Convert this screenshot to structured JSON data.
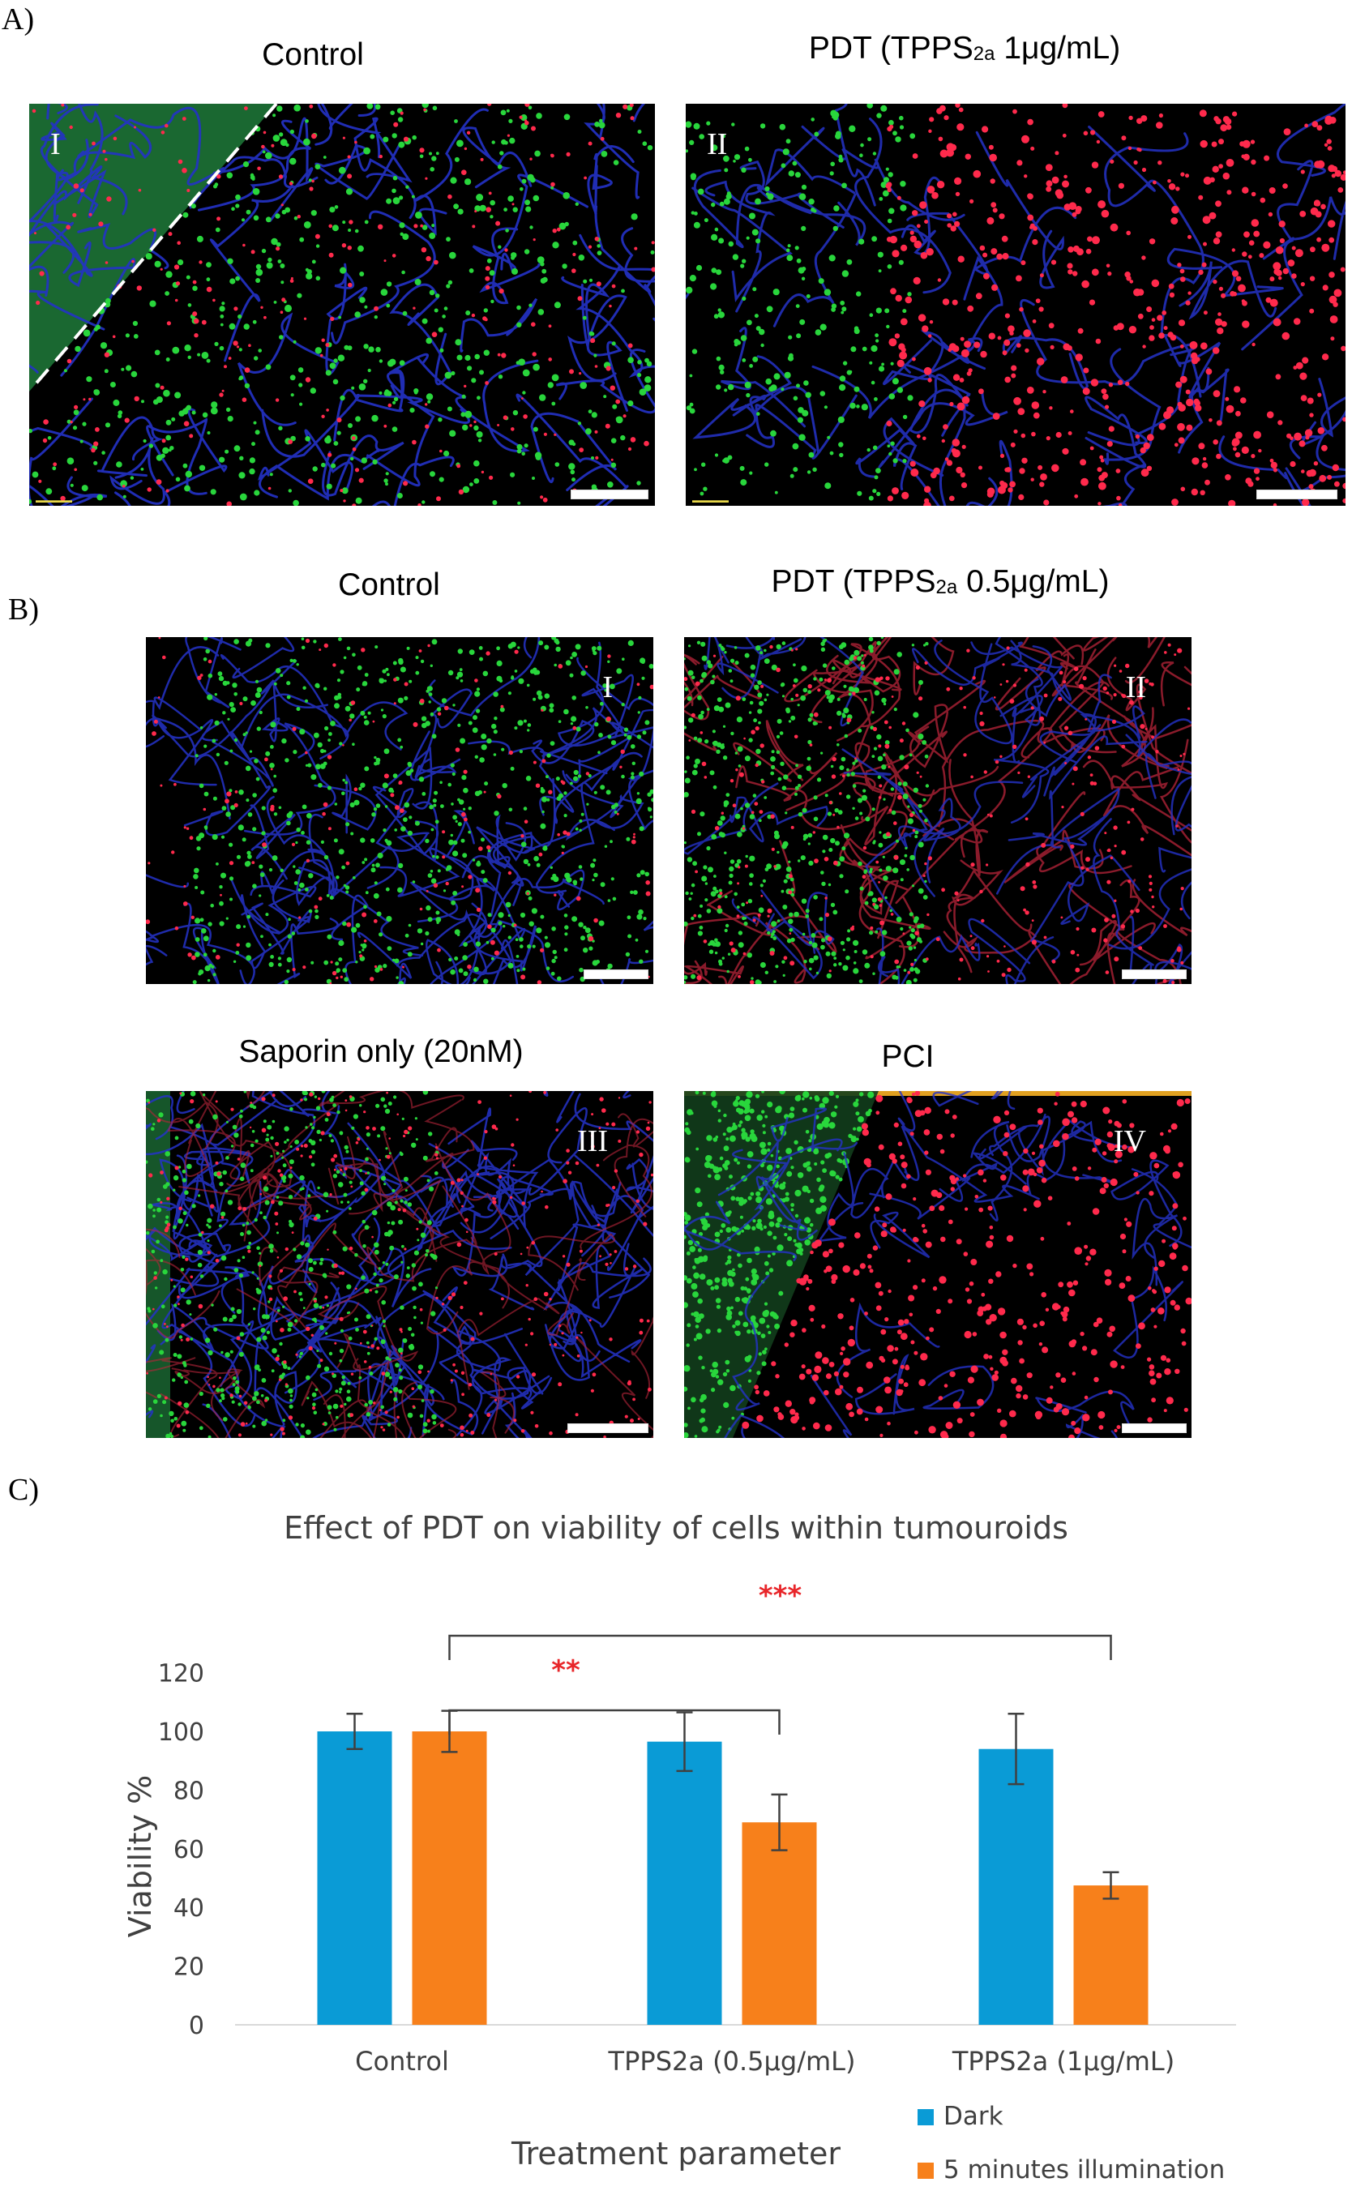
{
  "panelA": {
    "letter": "A)",
    "left": {
      "title": "Control",
      "numeral": "I"
    },
    "right": {
      "title_main": "PDT (TPPS",
      "title_sub": "2a",
      "title_tail": " 1μg/mL)",
      "numeral": "II"
    }
  },
  "panelB": {
    "letter": "B)",
    "topLeft": {
      "title": "Control",
      "numeral": "I"
    },
    "topRight": {
      "title_main": "PDT (TPPS",
      "title_sub": "2a",
      "title_tail": " 0.5μg/mL)",
      "numeral": "II"
    },
    "bottomLeft": {
      "title": "Saporin only (20nM)",
      "numeral": "III"
    },
    "bottomRight": {
      "title": "PCI",
      "numeral": "IV"
    }
  },
  "panelC": {
    "letter": "C)"
  },
  "colors": {
    "dark": "#0a9bd6",
    "illum": "#f7801b",
    "sig": "#e8262a",
    "membrane": "#2432c8",
    "live": "#29d63c",
    "dead": "#ff2a4c"
  },
  "chart_data": {
    "type": "bar",
    "title": "Effect of PDT on viability of cells within tumouroids",
    "xlabel": "Treatment parameter",
    "ylabel": "Viability %",
    "ylim": [
      0,
      120
    ],
    "yticks": [
      0,
      20,
      40,
      60,
      80,
      100,
      120
    ],
    "categories": [
      "Control",
      "TPPS2a (0.5μg/mL)",
      "TPPS2a (1μg/mL)"
    ],
    "series": [
      {
        "name": "Dark",
        "color": "#0a9bd6",
        "values": [
          100,
          96.5,
          94
        ],
        "errors": [
          6,
          10,
          12
        ]
      },
      {
        "name": "5 minutes illumination",
        "color": "#f7801b",
        "values": [
          100,
          69,
          47.5
        ],
        "errors": [
          7,
          9.5,
          4.5
        ]
      }
    ],
    "significance": [
      {
        "label": "**",
        "from_category": 0,
        "to_category": 1
      },
      {
        "label": "***",
        "from_category": 0,
        "to_category": 2
      }
    ],
    "legend_position": "bottom-right"
  }
}
